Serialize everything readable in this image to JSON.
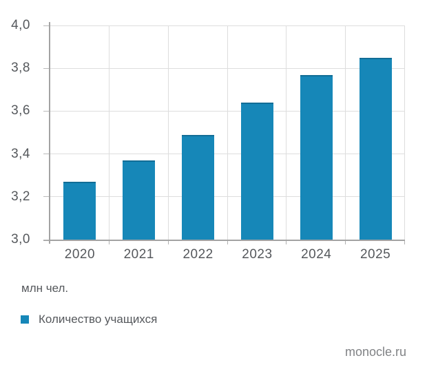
{
  "chart_data": {
    "type": "bar",
    "categories": [
      "2020",
      "2021",
      "2022",
      "2023",
      "2024",
      "2025"
    ],
    "series": [
      {
        "name": "Количество учащихся",
        "values": [
          3.27,
          3.37,
          3.49,
          3.64,
          3.77,
          3.85
        ]
      }
    ],
    "title": "",
    "xlabel": "",
    "ylabel": "",
    "unit_label": "млн чел.",
    "ylim": [
      3.0,
      4.0
    ],
    "ytick_step": 0.2,
    "ytick_labels": [
      "3,0",
      "3,2",
      "3,4",
      "3,6",
      "3,8",
      "4,0"
    ],
    "grid": "both",
    "legend_position": "below-left",
    "bar_color": "#1687b8"
  },
  "source": {
    "label": "monocle.ru"
  },
  "colors": {
    "bar": "#1687b8",
    "axis": "#a3a3a3",
    "grid": "#dddddd",
    "text": "#55585c",
    "source_text": "#808285"
  }
}
